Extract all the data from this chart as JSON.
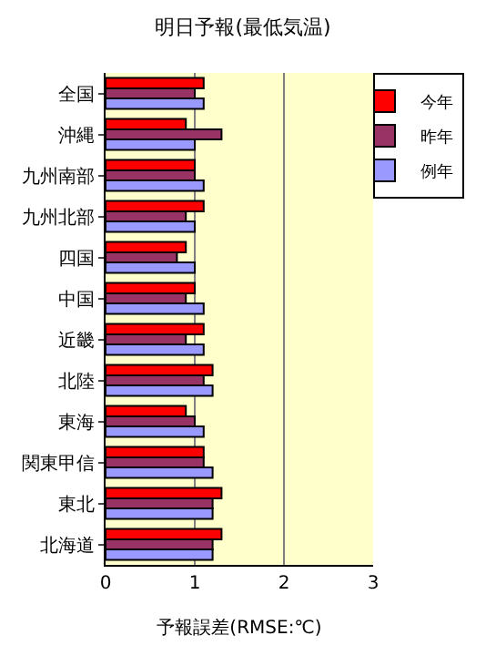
{
  "chart_data": {
    "type": "bar",
    "orientation": "horizontal",
    "title": "明日予報(最低気温)",
    "xlabel": "予報誤差(RMSE:℃)",
    "categories": [
      "全国",
      "沖縄",
      "九州南部",
      "九州北部",
      "四国",
      "中国",
      "近畿",
      "北陸",
      "東海",
      "関東甲信",
      "東北",
      "北海道"
    ],
    "series": [
      {
        "name": "今年",
        "color": "#ff0000",
        "values": [
          1.1,
          0.9,
          1.0,
          1.1,
          0.9,
          1.0,
          1.1,
          1.2,
          0.9,
          1.1,
          1.3,
          1.3
        ]
      },
      {
        "name": "昨年",
        "color": "#993366",
        "values": [
          1.0,
          1.3,
          1.0,
          0.9,
          0.8,
          0.9,
          0.9,
          1.1,
          1.0,
          1.1,
          1.2,
          1.2
        ]
      },
      {
        "name": "例年",
        "color": "#9999ff",
        "values": [
          1.1,
          1.0,
          1.1,
          1.0,
          1.0,
          1.1,
          1.1,
          1.2,
          1.1,
          1.2,
          1.2,
          1.2
        ]
      }
    ],
    "xlim": [
      0,
      3
    ],
    "xticks": [
      0,
      1,
      2,
      3
    ],
    "grid": "x",
    "legend": "top right"
  }
}
